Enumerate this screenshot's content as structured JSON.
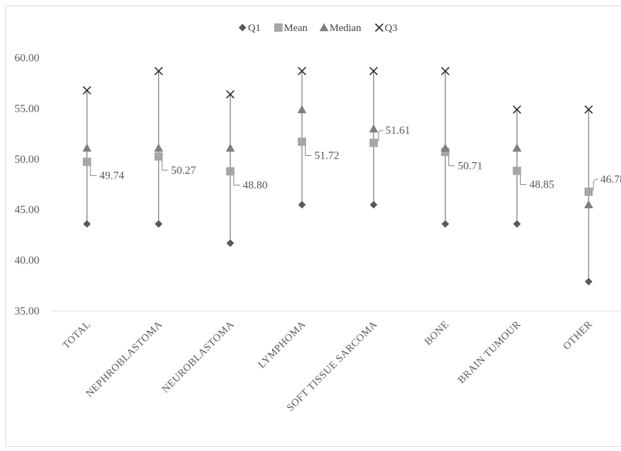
{
  "chart_data": {
    "type": "scatter",
    "categories": [
      "TOTAL",
      "NEPHROBLASTOMA",
      "NEUROBLASTOMA",
      "LYMPHOMA",
      "SOFT TISSUE SARCOMA",
      "BONE",
      "BRAIN TUMOUR",
      "OTHER"
    ],
    "series": [
      {
        "name": "Q1",
        "marker": "diamond",
        "color": "#595959",
        "values": [
          43.6,
          43.6,
          41.7,
          45.5,
          45.5,
          43.6,
          43.6,
          37.9
        ]
      },
      {
        "name": "Mean",
        "marker": "square",
        "color": "#a6a6a6",
        "values": [
          49.74,
          50.27,
          48.8,
          51.72,
          51.61,
          50.71,
          48.85,
          46.78
        ]
      },
      {
        "name": "Median",
        "marker": "triangle",
        "color": "#7f7f7f",
        "values": [
          51.1,
          51.1,
          51.1,
          54.9,
          53.0,
          51.1,
          51.1,
          45.5
        ]
      },
      {
        "name": "Q3",
        "marker": "x",
        "color": "#262626",
        "values": [
          56.8,
          58.7,
          56.4,
          58.7,
          58.7,
          58.7,
          54.9,
          54.9
        ]
      }
    ],
    "mean_labels": [
      "49.74",
      "50.27",
      "48.80",
      "51.72",
      "51.61",
      "50.71",
      "48.85",
      "46.78"
    ],
    "y_ticks": [
      "35.00",
      "40.00",
      "45.00",
      "50.00",
      "55.00",
      "60.00"
    ],
    "ylim": [
      35,
      60
    ],
    "title": "",
    "xlabel": "",
    "ylabel": "",
    "legend_position": "top-center",
    "grid": false,
    "colors": {
      "axis": "#d9d9d9",
      "range_line": "#808080",
      "tick_text": "#595959"
    }
  }
}
